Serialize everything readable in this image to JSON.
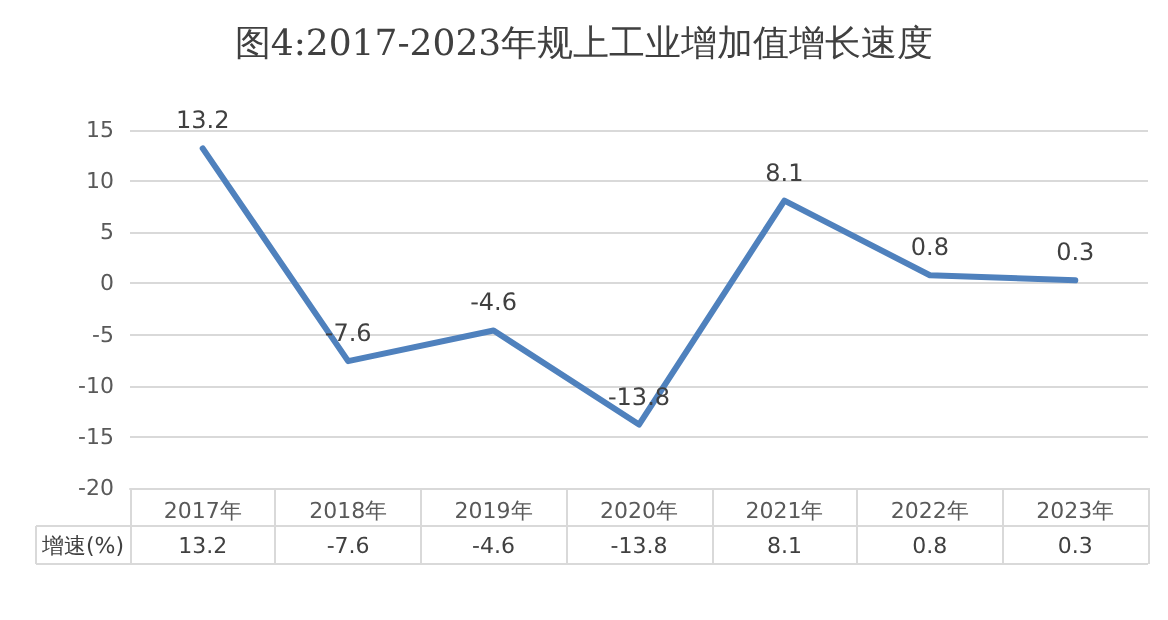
{
  "chart_data": {
    "type": "line",
    "title": "图4:2017-2023年规上工业增加值增长速度",
    "categories": [
      "2017年",
      "2018年",
      "2019年",
      "2020年",
      "2021年",
      "2022年",
      "2023年"
    ],
    "series": [
      {
        "name": "增速(%)",
        "color": "#4f81bd",
        "values": [
          13.2,
          -7.6,
          -4.6,
          -13.8,
          8.1,
          0.8,
          0.3
        ],
        "value_labels": [
          "13.2",
          "-7.6",
          "-4.6",
          "-13.8",
          "8.1",
          "0.8",
          "0.3"
        ]
      }
    ],
    "ylim": [
      -20,
      15
    ],
    "yticks": [
      -20,
      -15,
      -10,
      -5,
      0,
      5,
      10,
      15
    ],
    "annotations": [
      "13.2",
      "-7.6",
      "-4.6",
      "-13.8",
      "8.1",
      "0.8",
      "0.3"
    ],
    "grid": "y",
    "data_labels": true,
    "marker": "none",
    "line_style": "solid",
    "legend": false
  }
}
